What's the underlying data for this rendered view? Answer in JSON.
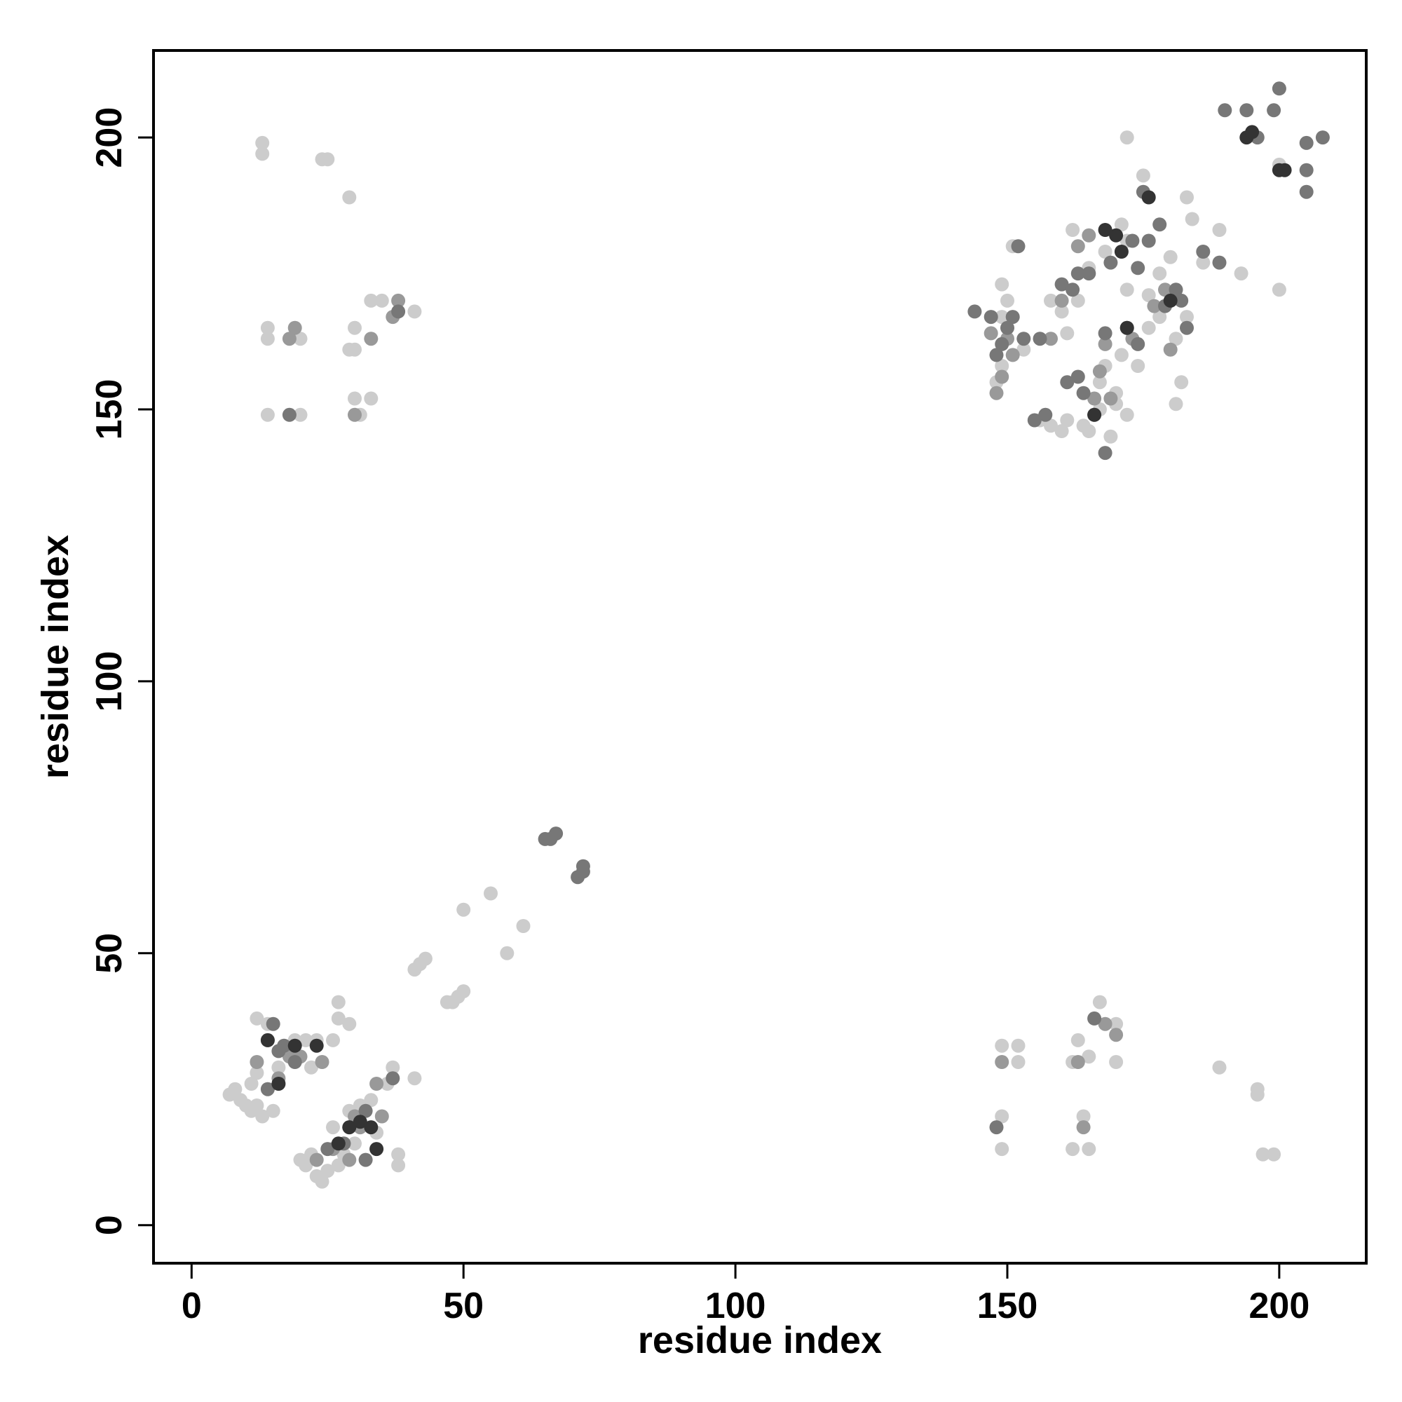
{
  "chart_data": {
    "type": "scatter",
    "title": "",
    "xlabel": "residue index",
    "ylabel": "residue index",
    "xlim": [
      -7,
      216
    ],
    "ylim": [
      -7,
      216
    ],
    "xticks": [
      0,
      50,
      100,
      150,
      200
    ],
    "yticks": [
      0,
      50,
      100,
      150,
      200
    ],
    "grid": false,
    "legend": "none",
    "colors": {
      "light": "#cccccc",
      "mid": "#999999",
      "dark": "#777777",
      "darkest": "#333333"
    },
    "series": [
      {
        "name": "",
        "color": "#cccccc",
        "points": [
          [
            13,
            199
          ],
          [
            13,
            197
          ],
          [
            24,
            196
          ],
          [
            25,
            196
          ],
          [
            29,
            189
          ],
          [
            14,
            165
          ],
          [
            14,
            163
          ],
          [
            20,
            163
          ],
          [
            29,
            161
          ],
          [
            30,
            161
          ],
          [
            30,
            165
          ],
          [
            33,
            170
          ],
          [
            35,
            170
          ],
          [
            41,
            168
          ],
          [
            14,
            149
          ],
          [
            20,
            149
          ],
          [
            30,
            152
          ],
          [
            33,
            152
          ],
          [
            31,
            149
          ],
          [
            172,
            200
          ],
          [
            175,
            193
          ],
          [
            200,
            172
          ],
          [
            193,
            175
          ],
          [
            200,
            195
          ],
          [
            183,
            189
          ],
          [
            183,
            167
          ],
          [
            189,
            183
          ],
          [
            186,
            177
          ],
          [
            171,
            184
          ],
          [
            172,
            181
          ],
          [
            168,
            179
          ],
          [
            165,
            176
          ],
          [
            162,
            183
          ],
          [
            158,
            170
          ],
          [
            160,
            168
          ],
          [
            153,
            161
          ],
          [
            149,
            158
          ],
          [
            148,
            155
          ],
          [
            149,
            167
          ],
          [
            150,
            170
          ],
          [
            149,
            173
          ],
          [
            151,
            180
          ],
          [
            171,
            160
          ],
          [
            168,
            158
          ],
          [
            167,
            155
          ],
          [
            170,
            153
          ],
          [
            172,
            149
          ],
          [
            174,
            158
          ],
          [
            176,
            165
          ],
          [
            178,
            167
          ],
          [
            181,
            163
          ],
          [
            182,
            155
          ],
          [
            181,
            151
          ],
          [
            178,
            175
          ],
          [
            176,
            171
          ],
          [
            172,
            172
          ],
          [
            180,
            178
          ],
          [
            184,
            185
          ],
          [
            161,
            148
          ],
          [
            164,
            147
          ],
          [
            167,
            150
          ],
          [
            170,
            151
          ],
          [
            169,
            145
          ],
          [
            165,
            146
          ],
          [
            160,
            146
          ],
          [
            156,
            148
          ],
          [
            158,
            147
          ],
          [
            163,
            170
          ],
          [
            161,
            164
          ],
          [
            7,
            24
          ],
          [
            8,
            25
          ],
          [
            9,
            23
          ],
          [
            10,
            22
          ],
          [
            11,
            21
          ],
          [
            12,
            22
          ],
          [
            13,
            20
          ],
          [
            11,
            26
          ],
          [
            12,
            28
          ],
          [
            14,
            25
          ],
          [
            15,
            21
          ],
          [
            16,
            29
          ],
          [
            12,
            38
          ],
          [
            14,
            37
          ],
          [
            19,
            34
          ],
          [
            21,
            34
          ],
          [
            23,
            34
          ],
          [
            22,
            29
          ],
          [
            27,
            41
          ],
          [
            27,
            38
          ],
          [
            29,
            37
          ],
          [
            26,
            34
          ],
          [
            20,
            12
          ],
          [
            21,
            11
          ],
          [
            22,
            13
          ],
          [
            23,
            9
          ],
          [
            24,
            8
          ],
          [
            25,
            10
          ],
          [
            27,
            11
          ],
          [
            28,
            13
          ],
          [
            30,
            15
          ],
          [
            29,
            21
          ],
          [
            31,
            22
          ],
          [
            33,
            23
          ],
          [
            34,
            17
          ],
          [
            36,
            26
          ],
          [
            37,
            29
          ],
          [
            38,
            11
          ],
          [
            38,
            13
          ],
          [
            41,
            27
          ],
          [
            26,
            18
          ],
          [
            41,
            47
          ],
          [
            42,
            48
          ],
          [
            43,
            49
          ],
          [
            47,
            41
          ],
          [
            48,
            41
          ],
          [
            49,
            42
          ],
          [
            50,
            43
          ],
          [
            50,
            58
          ],
          [
            55,
            61
          ],
          [
            58,
            50
          ],
          [
            61,
            55
          ],
          [
            149,
            33
          ],
          [
            152,
            33
          ],
          [
            152,
            30
          ],
          [
            149,
            20
          ],
          [
            149,
            14
          ],
          [
            162,
            30
          ],
          [
            163,
            34
          ],
          [
            165,
            31
          ],
          [
            167,
            41
          ],
          [
            170,
            37
          ],
          [
            170,
            30
          ],
          [
            164,
            20
          ],
          [
            165,
            14
          ],
          [
            162,
            14
          ],
          [
            189,
            29
          ],
          [
            196,
            25
          ],
          [
            196,
            24
          ],
          [
            197,
            13
          ],
          [
            199,
            13
          ]
        ]
      },
      {
        "name": "",
        "color": "#999999",
        "points": [
          [
            18,
            163
          ],
          [
            19,
            165
          ],
          [
            30,
            149
          ],
          [
            33,
            163
          ],
          [
            38,
            170
          ],
          [
            37,
            167
          ],
          [
            150,
            163
          ],
          [
            147,
            164
          ],
          [
            151,
            160
          ],
          [
            149,
            156
          ],
          [
            148,
            153
          ],
          [
            163,
            180
          ],
          [
            165,
            182
          ],
          [
            168,
            162
          ],
          [
            167,
            157
          ],
          [
            169,
            152
          ],
          [
            173,
            163
          ],
          [
            177,
            169
          ],
          [
            179,
            172
          ],
          [
            180,
            161
          ],
          [
            166,
            152
          ],
          [
            160,
            170
          ],
          [
            158,
            163
          ],
          [
            12,
            30
          ],
          [
            14,
            34
          ],
          [
            16,
            27
          ],
          [
            18,
            31
          ],
          [
            20,
            31
          ],
          [
            24,
            30
          ],
          [
            30,
            20
          ],
          [
            31,
            18
          ],
          [
            26,
            14
          ],
          [
            29,
            12
          ],
          [
            34,
            26
          ],
          [
            35,
            20
          ],
          [
            23,
            12
          ],
          [
            149,
            30
          ],
          [
            163,
            30
          ],
          [
            164,
            18
          ],
          [
            168,
            37
          ],
          [
            170,
            35
          ]
        ]
      },
      {
        "name": "",
        "color": "#777777",
        "points": [
          [
            18,
            149
          ],
          [
            38,
            168
          ],
          [
            144,
            168
          ],
          [
            147,
            167
          ],
          [
            151,
            167
          ],
          [
            150,
            165
          ],
          [
            149,
            162
          ],
          [
            148,
            160
          ],
          [
            152,
            180
          ],
          [
            153,
            163
          ],
          [
            156,
            163
          ],
          [
            155,
            148
          ],
          [
            157,
            149
          ],
          [
            161,
            155
          ],
          [
            163,
            156
          ],
          [
            164,
            153
          ],
          [
            166,
            149
          ],
          [
            168,
            142
          ],
          [
            163,
            175
          ],
          [
            165,
            175
          ],
          [
            169,
            177
          ],
          [
            173,
            181
          ],
          [
            174,
            176
          ],
          [
            176,
            181
          ],
          [
            178,
            184
          ],
          [
            179,
            169
          ],
          [
            181,
            172
          ],
          [
            182,
            170
          ],
          [
            183,
            165
          ],
          [
            186,
            179
          ],
          [
            189,
            177
          ],
          [
            168,
            164
          ],
          [
            172,
            165
          ],
          [
            174,
            162
          ],
          [
            160,
            173
          ],
          [
            162,
            172
          ],
          [
            175,
            190
          ],
          [
            190,
            205
          ],
          [
            194,
            205
          ],
          [
            196,
            200
          ],
          [
            199,
            205
          ],
          [
            200,
            209
          ],
          [
            205,
            199
          ],
          [
            205,
            194
          ],
          [
            205,
            190
          ],
          [
            208,
            200
          ],
          [
            65,
            71
          ],
          [
            66,
            71
          ],
          [
            67,
            72
          ],
          [
            71,
            64
          ],
          [
            72,
            65
          ],
          [
            72,
            66
          ],
          [
            15,
            37
          ],
          [
            17,
            33
          ],
          [
            19,
            30
          ],
          [
            14,
            25
          ],
          [
            16,
            32
          ],
          [
            29,
            18
          ],
          [
            32,
            21
          ],
          [
            37,
            27
          ],
          [
            25,
            14
          ],
          [
            32,
            12
          ],
          [
            28,
            15
          ],
          [
            148,
            18
          ],
          [
            166,
            38
          ]
        ]
      },
      {
        "name": "",
        "color": "#333333",
        "points": [
          [
            176,
            189
          ],
          [
            170,
            182
          ],
          [
            171,
            179
          ],
          [
            180,
            170
          ],
          [
            194,
            200
          ],
          [
            195,
            201
          ],
          [
            200,
            194
          ],
          [
            201,
            194
          ],
          [
            168,
            183
          ],
          [
            166,
            149
          ],
          [
            172,
            165
          ],
          [
            14,
            34
          ],
          [
            19,
            33
          ],
          [
            23,
            33
          ],
          [
            16,
            26
          ],
          [
            31,
            19
          ],
          [
            33,
            18
          ],
          [
            34,
            14
          ],
          [
            27,
            15
          ],
          [
            29,
            18
          ]
        ]
      }
    ]
  }
}
